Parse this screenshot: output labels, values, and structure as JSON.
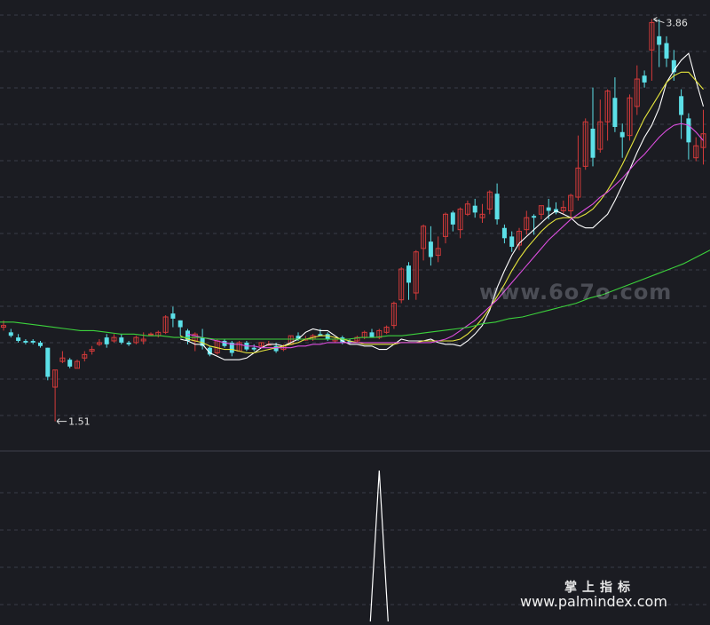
{
  "chart_data": [
    {
      "type": "candlestick",
      "title": "",
      "annotations": {
        "high_label": "3.86",
        "low_label": "1.51"
      },
      "colors": {
        "up": "#d43a3a",
        "down": "#5ce0e8",
        "ma5": "#ffffff",
        "ma10": "#e6e63c",
        "ma20": "#dd4ee0",
        "ma60": "#3cd23c",
        "background": "#1b1c22",
        "grid": "#3a3c48"
      },
      "ylim": [
        1.43,
        3.92
      ],
      "grid": true,
      "candles": [
        [
          2.06,
          2.07,
          2.1,
          2.04
        ],
        [
          2.03,
          2.01,
          2.05,
          2.0
        ],
        [
          2.0,
          1.98,
          2.02,
          1.97
        ],
        [
          1.98,
          1.97,
          1.99,
          1.96
        ],
        [
          1.98,
          1.97,
          1.99,
          1.96
        ],
        [
          1.97,
          1.95,
          1.98,
          1.94
        ],
        [
          1.94,
          1.77,
          1.94,
          1.75
        ],
        [
          1.71,
          1.81,
          1.81,
          1.51
        ],
        [
          1.86,
          1.88,
          1.92,
          1.85
        ],
        [
          1.87,
          1.83,
          1.88,
          1.82
        ],
        [
          1.82,
          1.86,
          1.87,
          1.82
        ],
        [
          1.88,
          1.9,
          1.92,
          1.86
        ],
        [
          1.92,
          1.93,
          1.95,
          1.9
        ],
        [
          1.96,
          1.97,
          1.99,
          1.95
        ],
        [
          2.0,
          1.96,
          2.02,
          1.94
        ],
        [
          1.98,
          2.0,
          2.02,
          1.97
        ],
        [
          2.0,
          1.97,
          2.02,
          1.96
        ],
        [
          1.97,
          1.96,
          1.98,
          1.95
        ],
        [
          1.97,
          2.0,
          2.01,
          1.96
        ],
        [
          1.98,
          1.99,
          2.03,
          1.96
        ],
        [
          2.02,
          2.02,
          2.03,
          2.01
        ],
        [
          2.01,
          2.03,
          2.04,
          2.0
        ],
        [
          2.03,
          2.12,
          2.13,
          2.02
        ],
        [
          2.14,
          2.11,
          2.18,
          2.06
        ],
        [
          2.1,
          2.06,
          2.1,
          2.01
        ],
        [
          2.04,
          1.98,
          2.05,
          1.96
        ],
        [
          1.98,
          2.02,
          2.03,
          1.92
        ],
        [
          2.0,
          1.95,
          2.05,
          1.93
        ],
        [
          1.94,
          1.9,
          1.95,
          1.89
        ],
        [
          1.91,
          1.98,
          1.99,
          1.9
        ],
        [
          1.98,
          1.95,
          1.99,
          1.94
        ],
        [
          1.97,
          1.91,
          1.98,
          1.89
        ],
        [
          1.92,
          1.97,
          1.98,
          1.92
        ],
        [
          1.97,
          1.93,
          1.98,
          1.92
        ],
        [
          1.94,
          1.93,
          1.96,
          1.92
        ],
        [
          1.95,
          1.97,
          1.97,
          1.94
        ],
        [
          1.96,
          1.96,
          1.98,
          1.95
        ],
        [
          1.95,
          1.92,
          1.97,
          1.91
        ],
        [
          1.93,
          1.95,
          1.96,
          1.92
        ],
        [
          1.96,
          2.01,
          2.01,
          1.96
        ],
        [
          2.01,
          1.99,
          2.03,
          1.98
        ],
        [
          1.99,
          1.99,
          2.01,
          1.98
        ],
        [
          1.99,
          2.01,
          2.02,
          1.98
        ],
        [
          2.02,
          2.01,
          2.05,
          2.01
        ],
        [
          2.02,
          1.99,
          2.03,
          1.98
        ],
        [
          1.98,
          1.99,
          2.0,
          1.97
        ],
        [
          2.0,
          1.97,
          2.01,
          1.96
        ],
        [
          1.98,
          1.97,
          1.99,
          1.96
        ],
        [
          1.98,
          2.0,
          2.01,
          1.97
        ],
        [
          2.0,
          2.03,
          2.04,
          1.99
        ],
        [
          2.03,
          2.0,
          2.05,
          2.0
        ],
        [
          2.0,
          2.04,
          2.05,
          1.99
        ],
        [
          2.03,
          2.06,
          2.07,
          2.02
        ],
        [
          2.07,
          2.2,
          2.21,
          2.05
        ],
        [
          2.22,
          2.4,
          2.41,
          2.2
        ],
        [
          2.42,
          2.32,
          2.44,
          2.22
        ],
        [
          2.26,
          2.5,
          2.51,
          2.22
        ],
        [
          2.52,
          2.65,
          2.66,
          2.45
        ],
        [
          2.56,
          2.47,
          2.65,
          2.42
        ],
        [
          2.48,
          2.52,
          2.59,
          2.44
        ],
        [
          2.59,
          2.72,
          2.73,
          2.55
        ],
        [
          2.73,
          2.66,
          2.74,
          2.62
        ],
        [
          2.63,
          2.75,
          2.76,
          2.58
        ],
        [
          2.72,
          2.78,
          2.8,
          2.71
        ],
        [
          2.77,
          2.73,
          2.81,
          2.7
        ],
        [
          2.7,
          2.72,
          2.78,
          2.67
        ],
        [
          2.75,
          2.85,
          2.86,
          2.72
        ],
        [
          2.84,
          2.69,
          2.9,
          2.66
        ],
        [
          2.64,
          2.58,
          2.66,
          2.55
        ],
        [
          2.59,
          2.53,
          2.62,
          2.5
        ],
        [
          2.54,
          2.62,
          2.64,
          2.51
        ],
        [
          2.63,
          2.7,
          2.74,
          2.6
        ],
        [
          2.71,
          2.7,
          2.72,
          2.6
        ],
        [
          2.72,
          2.77,
          2.77,
          2.69
        ],
        [
          2.76,
          2.74,
          2.81,
          2.69
        ],
        [
          2.75,
          2.73,
          2.79,
          2.72
        ],
        [
          2.74,
          2.76,
          2.8,
          2.72
        ],
        [
          2.74,
          2.83,
          2.84,
          2.7
        ],
        [
          2.82,
          2.99,
          3.18,
          2.8
        ],
        [
          3.0,
          3.26,
          3.28,
          2.98
        ],
        [
          3.22,
          3.05,
          3.46,
          3.0
        ],
        [
          3.1,
          3.26,
          3.39,
          3.08
        ],
        [
          3.26,
          3.44,
          3.45,
          3.15
        ],
        [
          3.4,
          3.23,
          3.52,
          3.2
        ],
        [
          3.2,
          3.17,
          3.25,
          3.05
        ],
        [
          3.18,
          3.4,
          3.42,
          3.15
        ],
        [
          3.35,
          3.51,
          3.59,
          3.3
        ],
        [
          3.53,
          3.49,
          3.56,
          3.46
        ],
        [
          3.68,
          3.84,
          3.86,
          3.5
        ],
        [
          3.76,
          3.71,
          3.86,
          3.58
        ],
        [
          3.72,
          3.63,
          3.76,
          3.58
        ],
        [
          3.62,
          3.55,
          3.68,
          3.5
        ],
        [
          3.41,
          3.3,
          3.45,
          3.16
        ],
        [
          3.28,
          3.14,
          3.31,
          3.04
        ],
        [
          3.05,
          3.12,
          3.17,
          3.03
        ],
        [
          3.11,
          3.19,
          3.33,
          3.01
        ]
      ],
      "series": [
        {
          "values": [
            1.99,
            1.98,
            1.96,
            1.96,
            1.91,
            1.89,
            1.87,
            1.87,
            1.87,
            1.88,
            1.91,
            1.94,
            1.96,
            1.96,
            1.95,
            1.97,
            1.99,
            2.03,
            2.05,
            2.04,
            2.04,
            2.01,
            1.98,
            1.96,
            1.96,
            1.95,
            1.95,
            1.93,
            1.93,
            1.96,
            1.99,
            1.98,
            1.98,
            1.98,
            1.99,
            1.97,
            1.96,
            1.96,
            1.95,
            1.98,
            2.02,
            2.07,
            2.16,
            2.29,
            2.39,
            2.48,
            2.55,
            2.59,
            2.63,
            2.67,
            2.71,
            2.74,
            2.72,
            2.7,
            2.66,
            2.64,
            2.64,
            2.68,
            2.72,
            2.8,
            2.89,
            2.98,
            3.08,
            3.17,
            3.24,
            3.34,
            3.49,
            3.56,
            3.62,
            3.66,
            3.5,
            3.35
          ]
        },
        {
          "values": [
            2.01,
            1.99,
            1.98,
            1.97,
            1.95,
            1.94,
            1.93,
            1.93,
            1.92,
            1.91,
            1.91,
            1.92,
            1.93,
            1.94,
            1.95,
            1.96,
            1.97,
            1.99,
            2.0,
            2.01,
            2.01,
            2.0,
            1.99,
            1.98,
            1.97,
            1.96,
            1.96,
            1.96,
            1.96,
            1.96,
            1.97,
            1.97,
            1.97,
            1.98,
            1.98,
            1.98,
            1.98,
            1.98,
            1.99,
            2.02,
            2.06,
            2.11,
            2.17,
            2.24,
            2.31,
            2.39,
            2.46,
            2.52,
            2.57,
            2.62,
            2.66,
            2.69,
            2.7,
            2.7,
            2.7,
            2.72,
            2.75,
            2.8,
            2.86,
            2.93,
            3.01,
            3.1,
            3.19,
            3.28,
            3.35,
            3.42,
            3.49,
            3.53,
            3.55,
            3.55,
            3.5,
            3.45
          ]
        },
        {
          "values": [
            2.02,
            2.01,
            2.0,
            1.99,
            1.98,
            1.97,
            1.96,
            1.96,
            1.95,
            1.95,
            1.94,
            1.94,
            1.94,
            1.94,
            1.94,
            1.95,
            1.95,
            1.96,
            1.96,
            1.97,
            1.97,
            1.97,
            1.97,
            1.97,
            1.97,
            1.97,
            1.97,
            1.97,
            1.97,
            1.97,
            1.97,
            1.97,
            1.97,
            1.97,
            1.98,
            1.99,
            2.01,
            2.04,
            2.07,
            2.1,
            2.14,
            2.18,
            2.22,
            2.27,
            2.32,
            2.37,
            2.42,
            2.47,
            2.52,
            2.57,
            2.61,
            2.65,
            2.69,
            2.72,
            2.75,
            2.78,
            2.82,
            2.85,
            2.89,
            2.93,
            2.98,
            3.03,
            3.07,
            3.12,
            3.17,
            3.21,
            3.24,
            3.25,
            3.24,
            3.2,
            3.15
          ]
        },
        {
          "values": [
            2.09,
            2.09,
            2.08,
            2.07,
            2.06,
            2.05,
            2.04,
            2.04,
            2.03,
            2.02,
            2.02,
            2.01,
            2.01,
            2.0,
            2.0,
            2.0,
            1.99,
            1.99,
            1.99,
            1.99,
            1.99,
            1.99,
            1.99,
            1.99,
            1.99,
            1.99,
            1.99,
            2.0,
            2.0,
            2.01,
            2.01,
            2.02,
            2.03,
            2.04,
            2.05,
            2.06,
            2.08,
            2.09,
            2.11,
            2.12,
            2.14,
            2.16,
            2.18,
            2.2,
            2.23,
            2.25,
            2.28,
            2.31,
            2.34,
            2.37,
            2.4,
            2.43,
            2.47,
            2.51
          ]
        }
      ],
      "indicator": {
        "type": "spike",
        "values": [
          0,
          0,
          0,
          0,
          0,
          0,
          0,
          0,
          0,
          0,
          0,
          0,
          0,
          0,
          0,
          0,
          0,
          0,
          0,
          0,
          0,
          0,
          0,
          0,
          0,
          0,
          0,
          0,
          0,
          0,
          0,
          0,
          0,
          0,
          0,
          0,
          0,
          0,
          0,
          0,
          0,
          0,
          0,
          0,
          0,
          0,
          0,
          0,
          0,
          0,
          0,
          1,
          0,
          0,
          0,
          0,
          0,
          0,
          0,
          0,
          0,
          0,
          0,
          0,
          0,
          0,
          0,
          0,
          0,
          0,
          0,
          0,
          0,
          0,
          0,
          0,
          0,
          0,
          0,
          0,
          0,
          0,
          0,
          0,
          0,
          0,
          0,
          0,
          0,
          0,
          0,
          0,
          0,
          0,
          0,
          0
        ]
      }
    }
  ],
  "watermark": {
    "main": "www.6o7o.com",
    "brand_cn": "掌上指标",
    "brand_url": "www.palmindex.com"
  }
}
